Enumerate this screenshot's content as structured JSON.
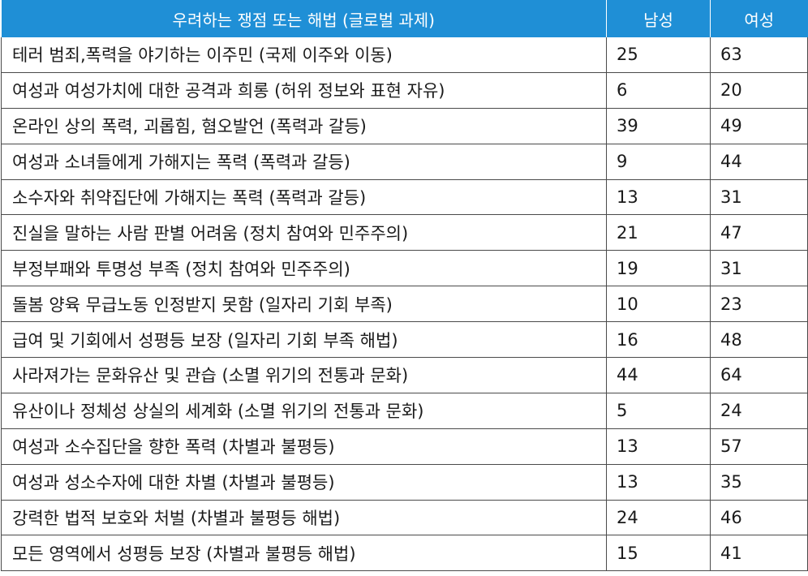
{
  "table": {
    "headers": {
      "issue": "우려하는 쟁점 또는 해법 (글로벌 과제)",
      "male": "남성",
      "female": "여성"
    },
    "rows": [
      {
        "issue": "테러 범죄,폭력을 야기하는 이주민 (국제 이주와 이동)",
        "male": "25",
        "female": "63"
      },
      {
        "issue": "여성과 여성가치에 대한 공격과 희롱 (허위 정보와 표현 자유)",
        "male": "6",
        "female": "20"
      },
      {
        "issue": "온라인 상의 폭력, 괴롭힘, 혐오발언 (폭력과 갈등)",
        "male": "39",
        "female": "49"
      },
      {
        "issue": "여성과 소녀들에게 가해지는 폭력 (폭력과 갈등)",
        "male": "9",
        "female": "44"
      },
      {
        "issue": "소수자와 취약집단에 가해지는 폭력 (폭력과 갈등)",
        "male": "13",
        "female": "31"
      },
      {
        "issue": "진실을 말하는 사람 판별 어려움 (정치 참여와 민주주의)",
        "male": "21",
        "female": "47"
      },
      {
        "issue": "부정부패와 투명성 부족 (정치 참여와 민주주의)",
        "male": "19",
        "female": "31"
      },
      {
        "issue": "돌봄 양육 무급노동 인정받지 못함 (일자리 기회 부족)",
        "male": "10",
        "female": "23"
      },
      {
        "issue": "급여 및 기회에서 성평등 보장 (일자리 기회 부족 해법)",
        "male": "16",
        "female": "48"
      },
      {
        "issue": "사라져가는 문화유산 및 관습 (소멸 위기의 전통과 문화)",
        "male": "44",
        "female": "64"
      },
      {
        "issue": "유산이나 정체성 상실의 세계화 (소멸 위기의 전통과 문화)",
        "male": "5",
        "female": "24"
      },
      {
        "issue": "여성과 소수집단을 향한 폭력 (차별과 불평등)",
        "male": "13",
        "female": "57"
      },
      {
        "issue": "여성과 성소수자에 대한 차별 (차별과 불평등)",
        "male": "13",
        "female": "35"
      },
      {
        "issue": "강력한 법적 보호와 처벌 (차별과 불평등 해법)",
        "male": "24",
        "female": "46"
      },
      {
        "issue": "모든 영역에서 성평등 보장 (차별과 불평등 해법)",
        "male": "15",
        "female": "41"
      }
    ]
  },
  "colors": {
    "header_bg": "#1f8fd6",
    "header_text": "#ffffff",
    "border": "#4a4a4a"
  }
}
